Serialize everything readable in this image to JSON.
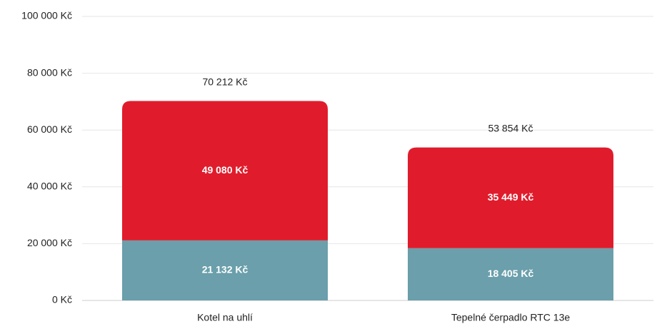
{
  "chart_data": {
    "type": "stacked_bar",
    "categories": [
      "Kotel na uhlí",
      "Tepelné čerpadlo RTC 13e"
    ],
    "series": [
      {
        "color": "#6a9fab",
        "values": [
          21132,
          18405
        ],
        "value_labels": [
          "21 132 Kč",
          "18 405 Kč"
        ]
      },
      {
        "color": "#e01c2c",
        "values": [
          49080,
          35449
        ],
        "value_labels": [
          "49 080 Kč",
          "35 449 Kč"
        ]
      }
    ],
    "total_labels": [
      "70 212 Kč",
      "53 854 Kč"
    ],
    "ylim": [
      0,
      100000
    ],
    "yticks": [
      {
        "value": 0,
        "label": "0 Kč"
      },
      {
        "value": 20000,
        "label": "20 000 Kč"
      },
      {
        "value": 40000,
        "label": "40 000 Kč"
      },
      {
        "value": 60000,
        "label": "60 000 Kč"
      },
      {
        "value": 80000,
        "label": "80 000 Kč"
      },
      {
        "value": 100000,
        "label": "100 000 Kč"
      }
    ],
    "grid": true
  }
}
